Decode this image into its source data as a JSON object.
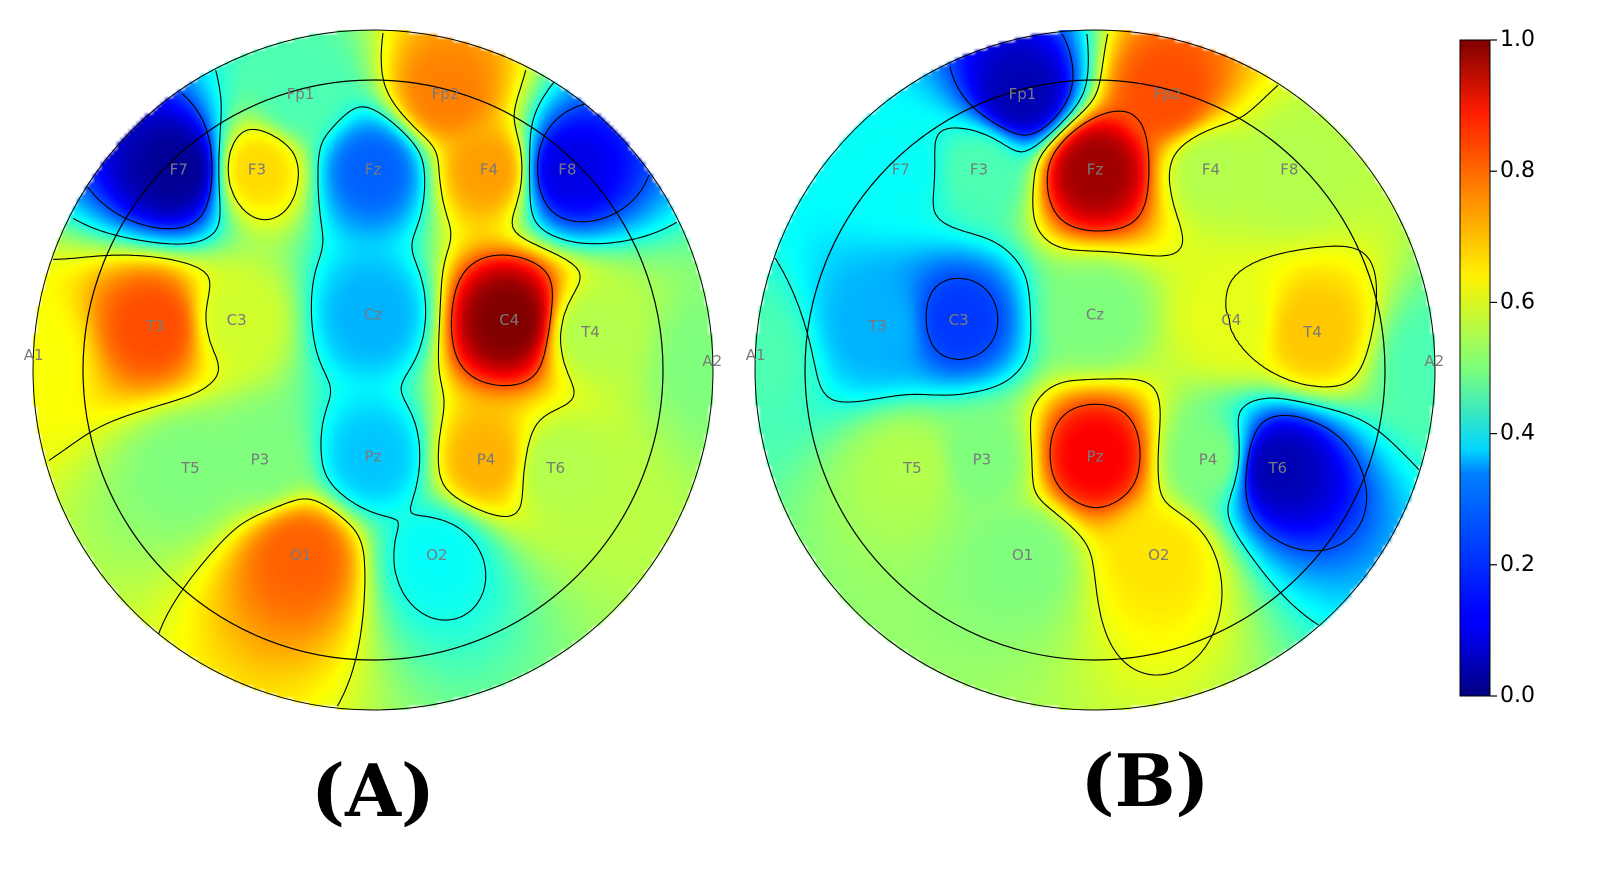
{
  "chart_data": [
    {
      "type": "heatmap",
      "subtype": "eeg-topographic-map",
      "caption": "(A)",
      "colormap": "jet",
      "value_range": [
        0,
        1
      ],
      "electrodes": [
        {
          "label": "Fp1",
          "value": 0.45
        },
        {
          "label": "Fp2",
          "value": 0.75
        },
        {
          "label": "F7",
          "value": 0.02
        },
        {
          "label": "F3",
          "value": 0.66
        },
        {
          "label": "Fz",
          "value": 0.22
        },
        {
          "label": "F4",
          "value": 0.72
        },
        {
          "label": "F8",
          "value": 0.1
        },
        {
          "label": "A1",
          "value": 0.62
        },
        {
          "label": "T3",
          "value": 0.8
        },
        {
          "label": "C3",
          "value": 0.58
        },
        {
          "label": "Cz",
          "value": 0.3
        },
        {
          "label": "C4",
          "value": 1.0
        },
        {
          "label": "T4",
          "value": 0.55
        },
        {
          "label": "A2",
          "value": 0.5
        },
        {
          "label": "T5",
          "value": 0.5
        },
        {
          "label": "P3",
          "value": 0.5
        },
        {
          "label": "Pz",
          "value": 0.32
        },
        {
          "label": "P4",
          "value": 0.7
        },
        {
          "label": "T6",
          "value": 0.55
        },
        {
          "label": "O1",
          "value": 0.78
        },
        {
          "label": "O2",
          "value": 0.38
        }
      ]
    },
    {
      "type": "heatmap",
      "subtype": "eeg-topographic-map",
      "caption": "(B)",
      "colormap": "jet",
      "value_range": [
        0,
        1
      ],
      "electrodes": [
        {
          "label": "Fp1",
          "value": 0.05
        },
        {
          "label": "Fp2",
          "value": 0.8
        },
        {
          "label": "F7",
          "value": 0.38
        },
        {
          "label": "F3",
          "value": 0.45
        },
        {
          "label": "Fz",
          "value": 0.97
        },
        {
          "label": "F4",
          "value": 0.55
        },
        {
          "label": "F8",
          "value": 0.55
        },
        {
          "label": "A1",
          "value": 0.45
        },
        {
          "label": "T3",
          "value": 0.3
        },
        {
          "label": "C3",
          "value": 0.18
        },
        {
          "label": "Cz",
          "value": 0.5
        },
        {
          "label": "C4",
          "value": 0.6
        },
        {
          "label": "T4",
          "value": 0.68
        },
        {
          "label": "A2",
          "value": 0.45
        },
        {
          "label": "T5",
          "value": 0.55
        },
        {
          "label": "P3",
          "value": 0.5
        },
        {
          "label": "Pz",
          "value": 0.88
        },
        {
          "label": "P4",
          "value": 0.5
        },
        {
          "label": "T6",
          "value": 0.05
        },
        {
          "label": "O1",
          "value": 0.5
        },
        {
          "label": "O2",
          "value": 0.65
        }
      ]
    }
  ],
  "colorbar": {
    "ticks": [
      "0.0",
      "0.2",
      "0.4",
      "0.6",
      "0.8",
      "1.0"
    ],
    "tick_values": [
      0,
      0.2,
      0.4,
      0.6,
      0.8,
      1.0
    ]
  }
}
